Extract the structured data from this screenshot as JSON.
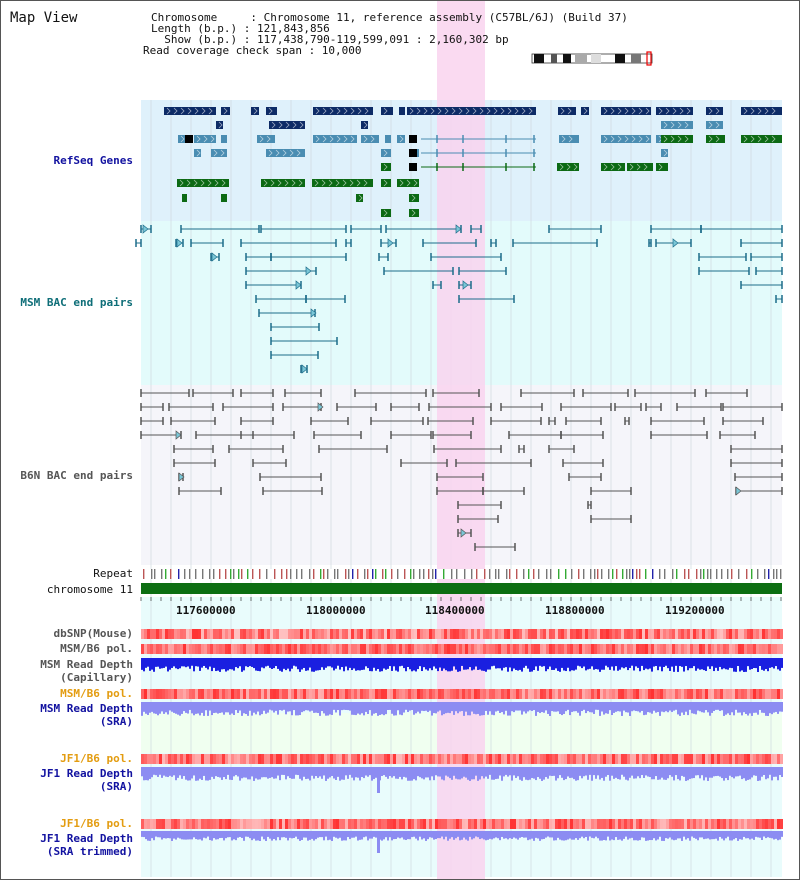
{
  "header": {
    "title": "Map View",
    "info_lines": [
      "Chromosome     : Chromosome 11, reference assembly (C57BL/6J) (Build 37)",
      "Length (b.p.) : 121,843,856",
      "  Show (b.p.) : 117,438,790-119,599,091 : 2,160,302 bp",
      "Read coverage check span : 10,000"
    ]
  },
  "tracks": {
    "refseq": "RefSeq Genes",
    "msm_bac": "MSM BAC end pairs",
    "b6n_bac": "B6N BAC end pairs",
    "repeat": "Repeat",
    "chromosome": "chromosome 11",
    "dbsnp": "dbSNP(Mouse)",
    "msm_b6_pol_1": "MSM/B6 pol.",
    "msm_read_depth_cap_1": "MSM Read Depth",
    "msm_read_depth_cap_2": "(Capillary)",
    "msm_b6_pol_2": "MSM/B6 pol.",
    "msm_read_depth_sra_1": "MSM Read Depth",
    "msm_read_depth_sra_2": "(SRA)",
    "jf1_b6_pol_1": "JF1/B6 pol.",
    "jf1_read_depth_sra_1": "JF1 Read Depth",
    "jf1_read_depth_sra_2": "(SRA)",
    "jf1_b6_pol_2": "JF1/B6 pol.",
    "jf1_read_depth_trim_1": "JF1 Read Depth",
    "jf1_read_depth_trim_2": "(SRA trimmed)"
  },
  "axis": {
    "ticks": [
      "117600000",
      "118000000",
      "118400000",
      "118800000",
      "119200000"
    ]
  },
  "colors": {
    "refseq_bg": "#dff1fb",
    "msm_bg": "#e3fbfb",
    "b6n_bg": "#f5f5fa",
    "highlight": "#f9d3ef",
    "gene_dark": "#0d2b66",
    "gene_mid": "#4a8db2",
    "gene_green": "#0c6a14",
    "bac_teal": "#1c6c8a",
    "bac_gray": "#555555",
    "chromosome_bar": "#0d6e12",
    "depth_blue": "#1a1fe0",
    "depth_lilac": "#8c8cf2",
    "pol_red": "#ec3b3b",
    "label_blue": "#1212a0",
    "label_teal": "#0e6e78",
    "label_orange": "#e39c10"
  }
}
